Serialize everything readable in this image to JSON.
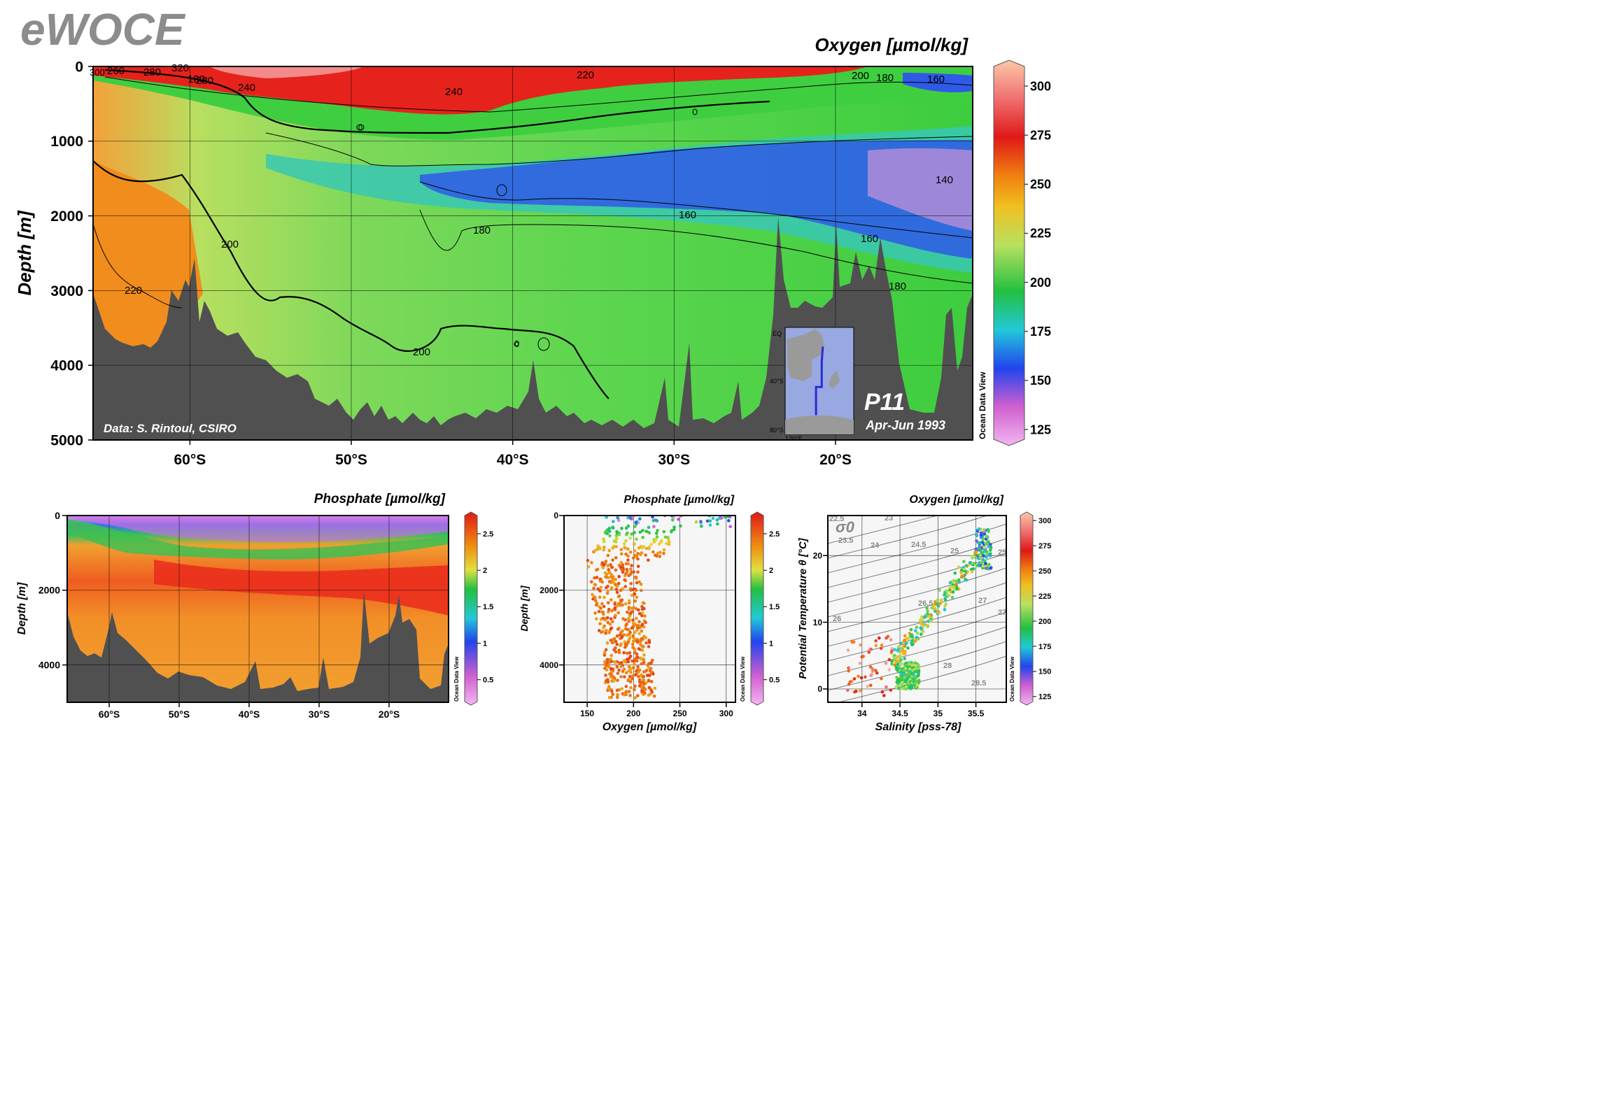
{
  "brand": "eWOCE",
  "data_credit": "Data: S. Rintoul, CSIRO",
  "colorbar_credit": "Ocean Data View",
  "section_name": "P11",
  "cruise_dates": "Apr-Jun 1993",
  "colors": {
    "bathymetry": "#505050",
    "frame": "#000000"
  },
  "chart_data": [
    {
      "id": "main_section",
      "type": "heatmap",
      "title": "Oxygen [µmol/kg]",
      "ylabel": "Depth [m]",
      "xlabel": "",
      "x_ticks": [
        "60°S",
        "50°S",
        "40°S",
        "30°S",
        "20°S"
      ],
      "x_tick_values": [
        -60,
        -50,
        -40,
        -30,
        -20
      ],
      "y_ticks": [
        "0",
        "1000",
        "2000",
        "3000",
        "4000",
        "5000"
      ],
      "y_tick_values": [
        0,
        1000,
        2000,
        3000,
        4000,
        5000
      ],
      "xlim": [
        -66,
        -11.5
      ],
      "ylim": [
        0,
        5000
      ],
      "y_inverted": true,
      "colorbar": {
        "min": 120,
        "max": 310,
        "ticks": [
          "125",
          "150",
          "175",
          "200",
          "225",
          "250",
          "275",
          "300"
        ],
        "tick_values": [
          125,
          150,
          175,
          200,
          225,
          250,
          275,
          300
        ]
      },
      "contour_labels": [
        "300",
        "260",
        "280",
        "320",
        "280",
        "180",
        "240",
        "220",
        "240",
        "200",
        "180",
        "160",
        "140",
        "160",
        "180",
        "160",
        "180",
        "200",
        "220",
        "200",
        "0",
        "0"
      ],
      "grid": true
    },
    {
      "id": "inset_map",
      "type": "map",
      "labels": [
        "EQ",
        "40°S",
        "80°S",
        "120°E"
      ],
      "track": [
        [
          147,
          -66
        ],
        [
          147,
          -43
        ],
        [
          152,
          -43
        ],
        [
          152,
          -22
        ],
        [
          153,
          -10
        ]
      ]
    },
    {
      "id": "phosphate_section",
      "type": "heatmap",
      "title": "Phosphate [µmol/kg]",
      "ylabel": "Depth [m]",
      "xlabel": "",
      "x_ticks": [
        "60°S",
        "50°S",
        "40°S",
        "30°S",
        "20°S"
      ],
      "x_tick_values": [
        -60,
        -50,
        -40,
        -30,
        -20
      ],
      "y_ticks": [
        "0",
        "2000",
        "4000"
      ],
      "y_tick_values": [
        0,
        2000,
        4000
      ],
      "xlim": [
        -66,
        -11.5
      ],
      "ylim": [
        0,
        5000
      ],
      "y_inverted": true,
      "colorbar": {
        "min": 0.2,
        "max": 2.75,
        "ticks": [
          "0.5",
          "1",
          "1.5",
          "2",
          "2.5"
        ],
        "tick_values": [
          0.5,
          1,
          1.5,
          2,
          2.5
        ]
      },
      "grid": true
    },
    {
      "id": "oxygen_depth_scatter",
      "type": "scatter",
      "title": "Phosphate [µmol/kg]",
      "xlabel": "Oxygen [µmol/kg]",
      "ylabel": "Depth [m]",
      "x_ticks": [
        "150",
        "200",
        "250",
        "300"
      ],
      "x_tick_values": [
        150,
        200,
        250,
        300
      ],
      "y_ticks": [
        "0",
        "2000",
        "4000"
      ],
      "y_tick_values": [
        0,
        2000,
        4000
      ],
      "xlim": [
        125,
        310
      ],
      "ylim": [
        0,
        5000
      ],
      "y_inverted": true,
      "color_variable_range": [
        0.2,
        2.75
      ],
      "colorbar": {
        "min": 0.2,
        "max": 2.75,
        "ticks": [
          "0.5",
          "1",
          "1.5",
          "2",
          "2.5"
        ],
        "tick_values": [
          0.5,
          1,
          1.5,
          2,
          2.5
        ]
      },
      "grid": true
    },
    {
      "id": "theta_salinity_scatter",
      "type": "scatter",
      "title": "Oxygen [µmol/kg]",
      "xlabel": "Salinity [pss-78]",
      "ylabel": "Potential Temperature θ [°C]",
      "x_ticks": [
        "34",
        "34.5",
        "35",
        "35.5"
      ],
      "x_tick_values": [
        34,
        34.5,
        35,
        35.5
      ],
      "y_ticks": [
        "0",
        "10",
        "20"
      ],
      "y_tick_values": [
        0,
        10,
        20
      ],
      "xlim": [
        33.55,
        35.9
      ],
      "ylim": [
        -2,
        26
      ],
      "isopycnal_symbol": "σ0",
      "isopycnal_labels": [
        "22.5",
        "23",
        "23.5",
        "24",
        "24.5",
        "25",
        "25",
        "26",
        "26.5",
        "27",
        "27",
        "28",
        "28.5"
      ],
      "colorbar": {
        "min": 120,
        "max": 305,
        "ticks": [
          "125",
          "150",
          "175",
          "200",
          "225",
          "250",
          "275",
          "300"
        ],
        "tick_values": [
          125,
          150,
          175,
          200,
          225,
          250,
          275,
          300
        ]
      },
      "grid": true
    }
  ]
}
